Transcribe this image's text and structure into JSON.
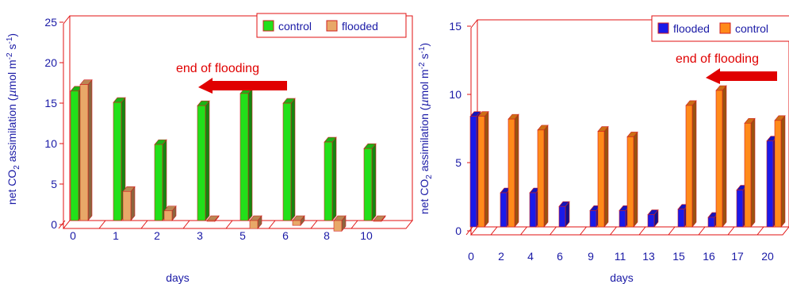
{
  "chart_data": [
    {
      "type": "bar",
      "xlabel": "days",
      "ylabel_parts": [
        "net CO",
        "2",
        " assimilation (",
        "µ",
        "mol m",
        "-2",
        " s",
        "-1",
        ")"
      ],
      "ylim": [
        0,
        25
      ],
      "yticks": [
        "0",
        "5",
        "10",
        "15",
        "20",
        "25"
      ],
      "categories": [
        "0",
        "1",
        "2",
        "3",
        "5",
        "6",
        "8",
        "10"
      ],
      "series": [
        {
          "name": "control",
          "color": "#22e01a",
          "values": [
            16,
            14.6,
            9.4,
            14.2,
            15.7,
            14.5,
            9.7,
            8.9
          ]
        },
        {
          "name": "flooded",
          "color": "#e8a868",
          "values": [
            16.8,
            3.6,
            1.2,
            -0.1,
            -1.0,
            -0.6,
            -1.3,
            0
          ]
        }
      ],
      "annotation": "end of flooding",
      "legend_position": "top-right"
    },
    {
      "type": "bar",
      "xlabel": "days",
      "ylabel_parts": [
        "net CO",
        "2",
        " assimilation (",
        "µ",
        "mol m",
        "-2",
        " s",
        "-1",
        ")"
      ],
      "ylim": [
        0,
        15
      ],
      "yticks": [
        "0",
        "5",
        "10",
        "15"
      ],
      "categories": [
        "0",
        "2",
        "4",
        "6",
        "9",
        "11",
        "13",
        "15",
        "16",
        "17",
        "20"
      ],
      "series": [
        {
          "name": "flooded",
          "color": "#1a1ae8",
          "values": [
            8.1,
            2.5,
            2.5,
            1.5,
            1.2,
            1.2,
            0.9,
            1.3,
            0.7,
            2.7,
            6.3
          ]
        },
        {
          "name": "control",
          "color": "#ff8a1a",
          "values": [
            8.1,
            7.9,
            7.1,
            0,
            7.0,
            6.6,
            0,
            8.9,
            10.0,
            7.6,
            7.8
          ]
        }
      ],
      "annotation": "end of flooding",
      "legend_position": "top-right"
    }
  ]
}
